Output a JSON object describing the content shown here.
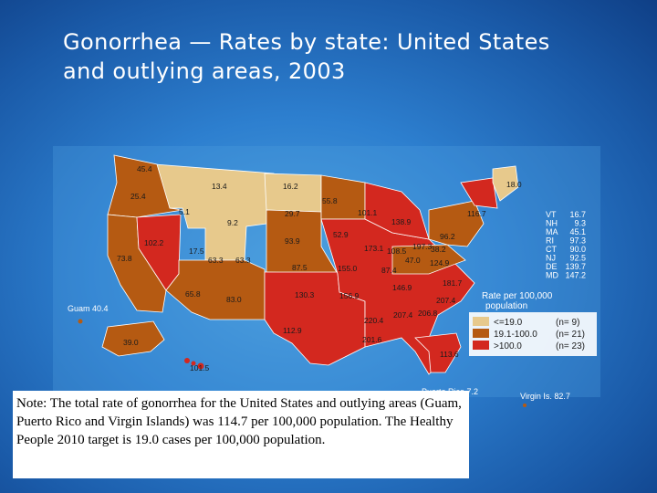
{
  "title": {
    "line1": "Gonorrhea — Rates by state: United States",
    "line2": "and outlying areas, 2003"
  },
  "colors": {
    "low": "#e7c98c",
    "mid": "#b55a12",
    "high": "#d3281f",
    "background": "#2d7fcf"
  },
  "state_labels": [
    {
      "id": "wa",
      "text": "45.4"
    },
    {
      "id": "or",
      "text": "25.4"
    },
    {
      "id": "ca",
      "text": "73.8"
    },
    {
      "id": "id",
      "text": "5.1"
    },
    {
      "id": "nv",
      "text": "102.2"
    },
    {
      "id": "mt",
      "text": "13.4"
    },
    {
      "id": "wy",
      "text": "9.2"
    },
    {
      "id": "ut",
      "text": "17.5"
    },
    {
      "id": "az",
      "text": "63.3"
    },
    {
      "id": "co",
      "text": "63.3"
    },
    {
      "id": "nm",
      "text": "65.8"
    },
    {
      "id": "nd",
      "text": "16.2"
    },
    {
      "id": "sd",
      "text": "29.7"
    },
    {
      "id": "ne",
      "text": "93.9"
    },
    {
      "id": "ks",
      "text": "87.5"
    },
    {
      "id": "ok",
      "text": "130.3"
    },
    {
      "id": "tx",
      "text": "112.9"
    },
    {
      "id": "mn",
      "text": "55.8"
    },
    {
      "id": "ia",
      "text": "52.9"
    },
    {
      "id": "mo",
      "text": "155.0"
    },
    {
      "id": "ar",
      "text": "156.9"
    },
    {
      "id": "la",
      "text": "220.4"
    },
    {
      "id": "wi",
      "text": "101.1"
    },
    {
      "id": "il",
      "text": "173.1"
    },
    {
      "id": "mi",
      "text": "138.9"
    },
    {
      "id": "in",
      "text": "108.5"
    },
    {
      "id": "oh",
      "text": "197.3"
    },
    {
      "id": "ky",
      "text": "87.4"
    },
    {
      "id": "tn",
      "text": "146.9"
    },
    {
      "id": "ms",
      "text": "207.4"
    },
    {
      "id": "al",
      "text": "206.8"
    },
    {
      "id": "ga",
      "text": "207.4"
    },
    {
      "id": "fl",
      "text": "113.6"
    },
    {
      "id": "sc",
      "text": "181.7"
    },
    {
      "id": "nc",
      "text": "124.9"
    },
    {
      "id": "va",
      "text": "47.0"
    },
    {
      "id": "wv",
      "text": "38.2"
    },
    {
      "id": "pa",
      "text": "96.2"
    },
    {
      "id": "ny",
      "text": "116.7"
    },
    {
      "id": "me",
      "text": "18.0"
    },
    {
      "id": "ak",
      "text": "39.0"
    },
    {
      "id": "hi",
      "text": "101.5"
    },
    {
      "id": "co2",
      "text": "83.0"
    },
    {
      "id": "ms2",
      "text": "201.6"
    }
  ],
  "northeast_list": [
    {
      "abbr": "VT",
      "value": "16.7"
    },
    {
      "abbr": "NH",
      "value": "9.3"
    },
    {
      "abbr": "MA",
      "value": "45.1"
    },
    {
      "abbr": "RI",
      "value": "97.3"
    },
    {
      "abbr": "CT",
      "value": "90.0"
    },
    {
      "abbr": "NJ",
      "value": "92.5"
    },
    {
      "abbr": "DE",
      "value": "139.7"
    },
    {
      "abbr": "MD",
      "value": "147.2"
    }
  ],
  "territories": {
    "guam": "Guam 40.4",
    "puerto_rico": "Puerto Rico 7.2",
    "virgin_islands": "Virgin Is. 82.7"
  },
  "legend": {
    "title_line1": "Rate per 100,000",
    "title_line2": "population",
    "items": [
      {
        "range": "<=19.0",
        "count": "(n=  9)",
        "color": "#e7c98c"
      },
      {
        "range": "19.1-100.0",
        "count": "(n= 21)",
        "color": "#b55a12"
      },
      {
        "range": ">100.0",
        "count": "(n= 23)",
        "color": "#d3281f"
      }
    ]
  },
  "note": "Note: The total rate of gonorrhea for the United States and outlying areas (Guam, Puerto Rico and Virgin Islands) was 114.7 per 100,000 population. The Healthy People 2010 target is 19.0 cases per 100,000 population."
}
